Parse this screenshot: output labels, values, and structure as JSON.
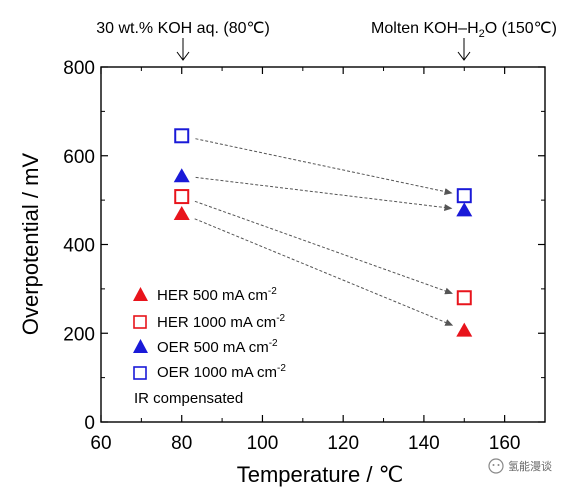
{
  "chart_data": {
    "type": "scatter",
    "xlabel": "Temperature",
    "xunit": "℃",
    "ylabel": "Overpotential / mV",
    "xlim": [
      60,
      170
    ],
    "ylim": [
      0,
      800
    ],
    "xticks": [
      60,
      80,
      100,
      120,
      140,
      160
    ],
    "yticks": [
      0,
      200,
      400,
      600,
      800
    ],
    "grid": false,
    "legend_position": "bottom-left",
    "series": [
      {
        "name": "HER 500 mA cm",
        "sup": "-2",
        "marker": "triangle",
        "filled": true,
        "color": "#e8141c",
        "points": [
          {
            "x": 80,
            "y": 470
          },
          {
            "x": 150,
            "y": 207
          }
        ]
      },
      {
        "name": "HER 1000 mA cm",
        "sup": "-2",
        "marker": "square",
        "filled": false,
        "color": "#e8141c",
        "points": [
          {
            "x": 80,
            "y": 508
          },
          {
            "x": 150,
            "y": 280
          }
        ]
      },
      {
        "name": "OER 500 mA cm",
        "sup": "-2",
        "marker": "triangle",
        "filled": true,
        "color": "#1a1ad8",
        "points": [
          {
            "x": 80,
            "y": 555
          },
          {
            "x": 150,
            "y": 478
          }
        ]
      },
      {
        "name": "OER 1000 mA cm",
        "sup": "-2",
        "marker": "square",
        "filled": false,
        "color": "#1a1ad8",
        "points": [
          {
            "x": 80,
            "y": 645
          },
          {
            "x": 150,
            "y": 510
          }
        ]
      }
    ],
    "legend_note": "IR compensated",
    "annotations": [
      {
        "text": "30 wt.% KOH aq. (80℃)",
        "x": 80
      },
      {
        "text": "Molten KOH–H",
        "sub": "2",
        "text2": "O (150℃)",
        "x": 150
      }
    ]
  },
  "watermark": {
    "text": "氢能漫谈"
  }
}
